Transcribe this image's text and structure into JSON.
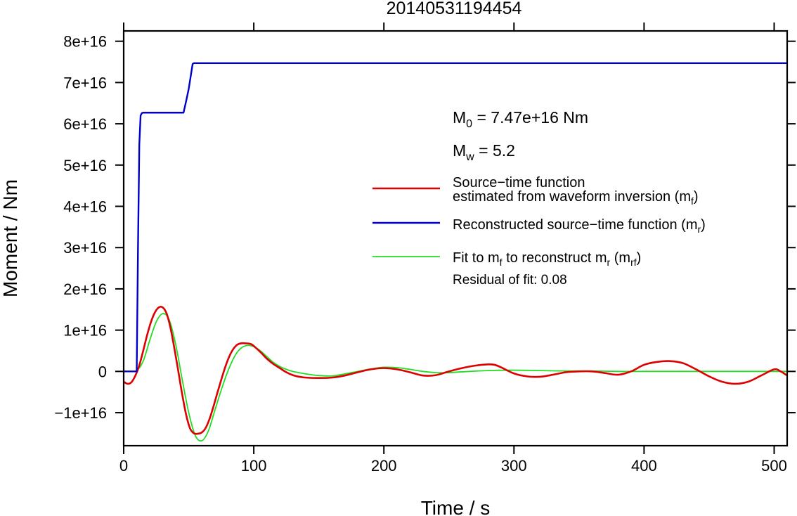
{
  "chart_data": {
    "type": "line",
    "title": "20140531194454",
    "xlabel": "Time / s",
    "ylabel": "Moment / Nm",
    "xlim": [
      0,
      510
    ],
    "ylim": [
      -18000000000000000,
      82500000000000000
    ],
    "xticks": [
      0,
      100,
      200,
      300,
      400,
      500
    ],
    "xtick_labels": [
      "0",
      "100",
      "200",
      "300",
      "400",
      "500"
    ],
    "yticks": [
      -10000000000000000,
      0,
      10000000000000000,
      20000000000000000,
      30000000000000000,
      40000000000000000,
      50000000000000000,
      60000000000000000,
      70000000000000000,
      80000000000000000
    ],
    "ytick_labels": [
      "−1e+16",
      "0",
      "1e+16",
      "2e+16",
      "3e+16",
      "4e+16",
      "5e+16",
      "6e+16",
      "7e+16",
      "8e+16"
    ],
    "grid": false,
    "legend_position": "right",
    "annotations": {
      "m0": {
        "base": "M",
        "sub": "0",
        "rest": " = 7.47e+16 Nm"
      },
      "mw": {
        "base": "M",
        "sub": "w",
        "rest": " = 5.2"
      },
      "residual": "Residual of fit: 0.08"
    },
    "series": [
      {
        "key": "mf",
        "color": "#dd0000",
        "width": 2.6,
        "legend_lines": [
          [
            {
              "t": "Source−time function"
            }
          ],
          [
            {
              "t": "estimated from waveform inversion (m"
            },
            {
              "t": "f",
              "sub": true
            },
            {
              "t": ")"
            }
          ]
        ],
        "x": [
          0,
          3,
          6,
          9,
          12,
          15,
          18,
          21,
          24,
          27,
          30,
          33,
          36,
          39,
          42,
          45,
          48,
          51,
          54,
          57,
          60,
          63,
          66,
          69,
          72,
          75,
          78,
          81,
          84,
          87,
          90,
          94,
          98,
          102,
          106,
          110,
          115,
          120,
          125,
          130,
          135,
          140,
          150,
          160,
          170,
          180,
          190,
          200,
          210,
          220,
          230,
          240,
          250,
          260,
          270,
          280,
          285,
          290,
          300,
          310,
          320,
          330,
          340,
          350,
          360,
          370,
          380,
          390,
          400,
          410,
          420,
          430,
          440,
          450,
          460,
          470,
          480,
          490,
          500,
          505,
          510
        ],
        "y": [
          -2500000000000000.0,
          -3000000000000000.0,
          -2600000000000000.0,
          -1000000000000000.0,
          1500000000000000.0,
          5000000000000000.0,
          8800000000000000.0,
          1.2e+16,
          1.43e+16,
          1.55e+16,
          1.55e+16,
          1.4e+16,
          1.05e+16,
          5500000000000000.0,
          0.0,
          -5600000000000000.0,
          -1.05e+16,
          -1.38e+16,
          -1.5e+16,
          -1.51e+16,
          -1.48e+16,
          -1.37e+16,
          -1.15e+16,
          -8500000000000000.0,
          -5200000000000000.0,
          -2000000000000000.0,
          1000000000000000.0,
          3500000000000000.0,
          5300000000000000.0,
          6400000000000000.0,
          6800000000000000.0,
          6800000000000000.0,
          6600000000000000.0,
          5600000000000000.0,
          4400000000000000.0,
          3100000000000000.0,
          1800000000000000.0,
          800000000000000.0,
          -200000000000000.0,
          -900000000000000.0,
          -1300000000000000.0,
          -1500000000000000.0,
          -1600000000000000.0,
          -1500000000000000.0,
          -1000000000000000.0,
          -200000000000000.0,
          500000000000000.0,
          800000000000000.0,
          500000000000000.0,
          -200000000000000.0,
          -1000000000000000.0,
          -900000000000000.0,
          0.0,
          800000000000000.0,
          1400000000000000.0,
          1700000000000000.0,
          1600000000000000.0,
          1000000000000000.0,
          -500000000000000.0,
          -1200000000000000.0,
          -1300000000000000.0,
          -800000000000000.0,
          -200000000000000.0,
          0.0,
          0.0,
          -400000000000000.0,
          -800000000000000.0,
          0.0,
          1600000000000000.0,
          2300000000000000.0,
          2500000000000000.0,
          2000000000000000.0,
          500000000000000.0,
          -1200000000000000.0,
          -2500000000000000.0,
          -3000000000000000.0,
          -2500000000000000.0,
          -1000000000000000.0,
          500000000000000.0,
          0.0,
          -1000000000000000.0
        ]
      },
      {
        "key": "mr",
        "color": "#0000cc",
        "width": 2.4,
        "legend_lines": [
          [
            {
              "t": "Reconstructed source−time function (m"
            },
            {
              "t": "r",
              "sub": true
            },
            {
              "t": ")"
            }
          ]
        ],
        "x": [
          0,
          10,
          11,
          12,
          13,
          14,
          15,
          46,
          48,
          50,
          52,
          53,
          54,
          510
        ],
        "y": [
          0,
          0,
          3e+16,
          5.5e+16,
          6.2e+16,
          6.26e+16,
          6.27e+16,
          6.27e+16,
          6.55e+16,
          6.85e+16,
          7.25e+16,
          7.45e+16,
          7.47e+16,
          7.47e+16
        ]
      },
      {
        "key": "mrf",
        "color": "#22dd22",
        "width": 1.8,
        "legend_lines": [
          [
            {
              "t": "Fit to m"
            },
            {
              "t": "f",
              "sub": true
            },
            {
              "t": " to reconstruct m"
            },
            {
              "t": "r",
              "sub": true
            },
            {
              "t": " (m"
            },
            {
              "t": "rf",
              "sub": true
            },
            {
              "t": ")"
            }
          ]
        ],
        "x": [
          0,
          5,
          10,
          15,
          20,
          25,
          30,
          35,
          40,
          45,
          50,
          55,
          60,
          65,
          70,
          75,
          80,
          85,
          90,
          95,
          100,
          105,
          110,
          115,
          120,
          125,
          130,
          140,
          150,
          160,
          170,
          180,
          190,
          200,
          210,
          220,
          230,
          240,
          250,
          260,
          280,
          300,
          320,
          340,
          360,
          380,
          400,
          420,
          440,
          460,
          480,
          500,
          510
        ],
        "y": [
          0,
          0,
          200000000000000.0,
          2500000000000000.0,
          7500000000000000.0,
          1.2e+16,
          1.4e+16,
          1.25e+16,
          6500000000000000.0,
          -2000000000000000.0,
          -1e+16,
          -1.55e+16,
          -1.68e+16,
          -1.45e+16,
          -9500000000000000.0,
          -4500000000000000.0,
          0.0,
          3500000000000000.0,
          5600000000000000.0,
          6300000000000000.0,
          6000000000000000.0,
          5000000000000000.0,
          3600000000000000.0,
          2200000000000000.0,
          1200000000000000.0,
          500000000000000.0,
          0.0,
          -600000000000000.0,
          -1000000000000000.0,
          -1100000000000000.0,
          -600000000000000.0,
          0.0,
          600000000000000.0,
          1000000000000000.0,
          900000000000000.0,
          500000000000000.0,
          0.0,
          -300000000000000.0,
          -300000000000000.0,
          -100000000000000.0,
          200000000000000.0,
          300000000000000.0,
          200000000000000.0,
          100000000000000.0,
          100000000000000.0,
          0.0,
          0.0,
          0.0,
          0.0,
          0.0,
          0.0,
          0.0,
          0.0
        ]
      }
    ]
  }
}
